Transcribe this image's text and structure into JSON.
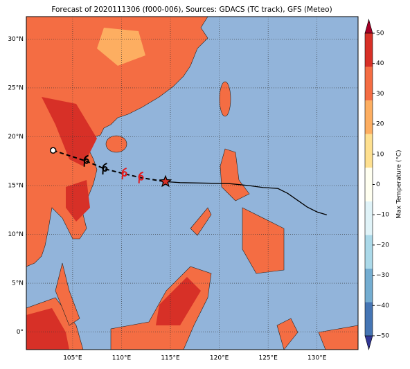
{
  "chart_data": {
    "type": "map",
    "title": "Forecast of 2020111306 (f000-006), Sources: GDACS (TC track), GFS (Meteo)",
    "xlim": [
      100.26,
      134.2
    ],
    "ylim": [
      -1.8,
      32.3
    ],
    "xticks": [
      {
        "value": 105,
        "label": "105°E"
      },
      {
        "value": 110,
        "label": "110°E"
      },
      {
        "value": 115,
        "label": "115°E"
      },
      {
        "value": 120,
        "label": "120°E"
      },
      {
        "value": 125,
        "label": "125°E"
      },
      {
        "value": 130,
        "label": "130°E"
      }
    ],
    "yticks": [
      {
        "value": 0,
        "label": "0°"
      },
      {
        "value": 5,
        "label": "5°N"
      },
      {
        "value": 10,
        "label": "10°N"
      },
      {
        "value": 15,
        "label": "15°N"
      },
      {
        "value": 20,
        "label": "20°N"
      },
      {
        "value": 25,
        "label": "25°N"
      },
      {
        "value": 30,
        "label": "30°N"
      }
    ],
    "grid": true,
    "colorbar": {
      "label": "Max Temperature (°C)",
      "lim": [
        -50,
        50
      ],
      "ticks": [
        {
          "value": -50,
          "label": "−50"
        },
        {
          "value": -40,
          "label": "−40"
        },
        {
          "value": -30,
          "label": "−30"
        },
        {
          "value": -20,
          "label": "−20"
        },
        {
          "value": -10,
          "label": "−10"
        },
        0,
        10,
        20,
        30,
        40,
        50
      ],
      "colors": [
        "#313695",
        "#4575b4",
        "#74add1",
        "#abd9e9",
        "#e0f3f8",
        "#fffff0",
        "#fee090",
        "#fdae61",
        "#f46d43",
        "#d73027",
        "#a50026"
      ]
    },
    "track": {
      "forecast": {
        "lon": [
          103,
          106.4,
          108.3,
          110.3,
          112,
          114.5
        ],
        "lat": [
          18.6,
          17.5,
          16.7,
          16.2,
          15.8,
          15.4
        ]
      },
      "observed": {
        "lon": [
          114.5,
          116,
          121,
          123,
          124.5,
          126,
          127,
          128,
          129,
          130,
          131
        ],
        "lat": [
          15.4,
          15.3,
          15.2,
          15,
          14.8,
          14.7,
          14.2,
          13.5,
          12.8,
          12.3,
          12
        ]
      }
    }
  }
}
